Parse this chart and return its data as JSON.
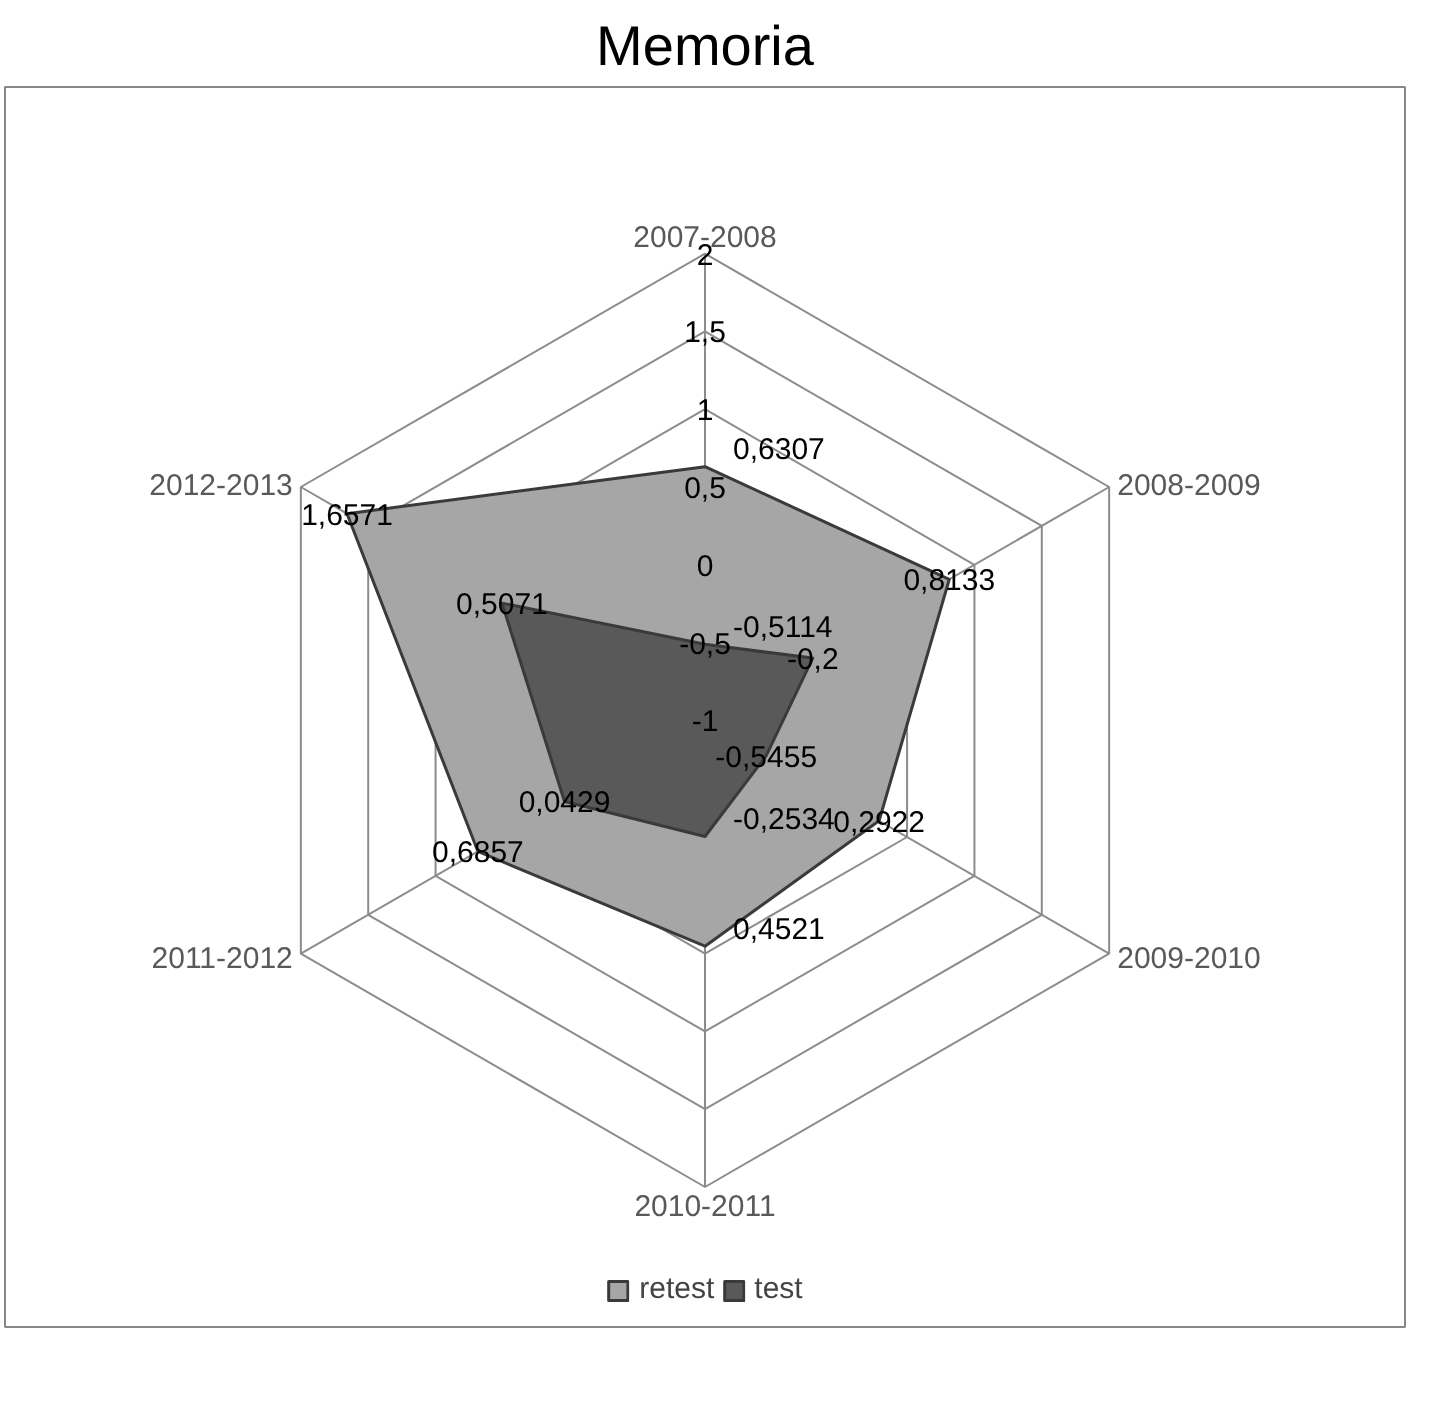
{
  "chart_data": {
    "type": "radar",
    "title": "Memoria",
    "categories": [
      "2007-2008",
      "2008-2009",
      "2009-2010",
      "2010-2011",
      "2011-2012",
      "2012-2013"
    ],
    "series": [
      {
        "name": "retest",
        "color": "#a6a6a6",
        "values": [
          0.6307,
          0.8133,
          0.2922,
          0.4521,
          0.6857,
          1.6571
        ],
        "value_labels": [
          "0,6307",
          "0,8133",
          "0,2922",
          "0,4521",
          "0,6857",
          "1,6571"
        ]
      },
      {
        "name": "test",
        "color": "#595959",
        "values": [
          -0.5114,
          -0.2,
          -0.5455,
          -0.2534,
          0.0429,
          0.5071
        ],
        "value_labels": [
          "-0,5114",
          "-0,2",
          "-0,5455",
          "-0,2534",
          "0,0429",
          "0,5071"
        ]
      }
    ],
    "ylim": [
      -1,
      2
    ],
    "yticks": [
      {
        "value": -1,
        "label": "-1"
      },
      {
        "value": -0.5,
        "label": "-0,5"
      },
      {
        "value": 0,
        "label": "0"
      },
      {
        "value": 0.5,
        "label": "0,5"
      },
      {
        "value": 1,
        "label": "1"
      },
      {
        "value": 1.5,
        "label": "1,5"
      },
      {
        "value": 2,
        "label": "2"
      }
    ],
    "legend": "bottom",
    "marker": "none"
  }
}
